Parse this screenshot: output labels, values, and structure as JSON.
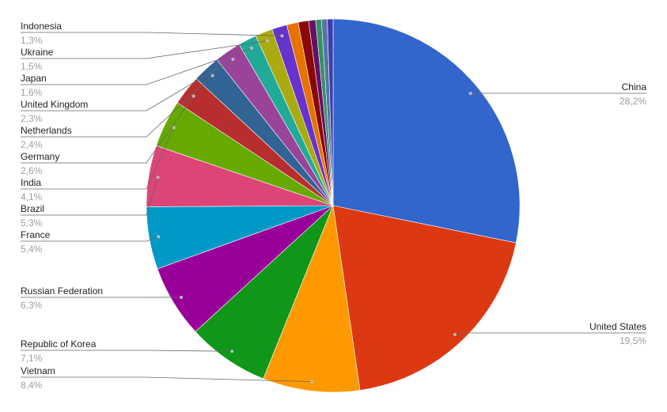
{
  "chart_data": {
    "type": "pie",
    "categories": [
      "China",
      "United States",
      "Vietnam",
      "Republic of Korea",
      "Russian Federation",
      "France",
      "Brazil",
      "India",
      "Germany",
      "Netherlands",
      "United Kingdom",
      "Japan",
      "Ukraine",
      "Indonesia",
      null,
      null,
      null,
      null,
      null,
      null
    ],
    "values": [
      28.2,
      19.5,
      8.4,
      7.1,
      6.3,
      5.4,
      5.3,
      4.1,
      2.6,
      2.4,
      2.3,
      1.6,
      1.5,
      1.3,
      1.0,
      0.9,
      0.6,
      0.5,
      0.5,
      0.5
    ],
    "value_labels": [
      "28,2%",
      "19,5%",
      "8,4%",
      "7,1%",
      "6,3%",
      "5,4%",
      "5,3%",
      "4,1%",
      "2,6%",
      "2,4%",
      "2,3%",
      "1,6%",
      "1,5%",
      "1,3%",
      null,
      null,
      null,
      null,
      null,
      null
    ],
    "colors": [
      "#3366cc",
      "#dc3912",
      "#ff9900",
      "#109618",
      "#990099",
      "#0099c6",
      "#dd4477",
      "#66aa00",
      "#b82e2e",
      "#316395",
      "#994499",
      "#22aa99",
      "#aaaa11",
      "#6633cc",
      "#e67300",
      "#8b0707",
      "#651067",
      "#329262",
      "#5574a6",
      "#3b3eac"
    ]
  }
}
